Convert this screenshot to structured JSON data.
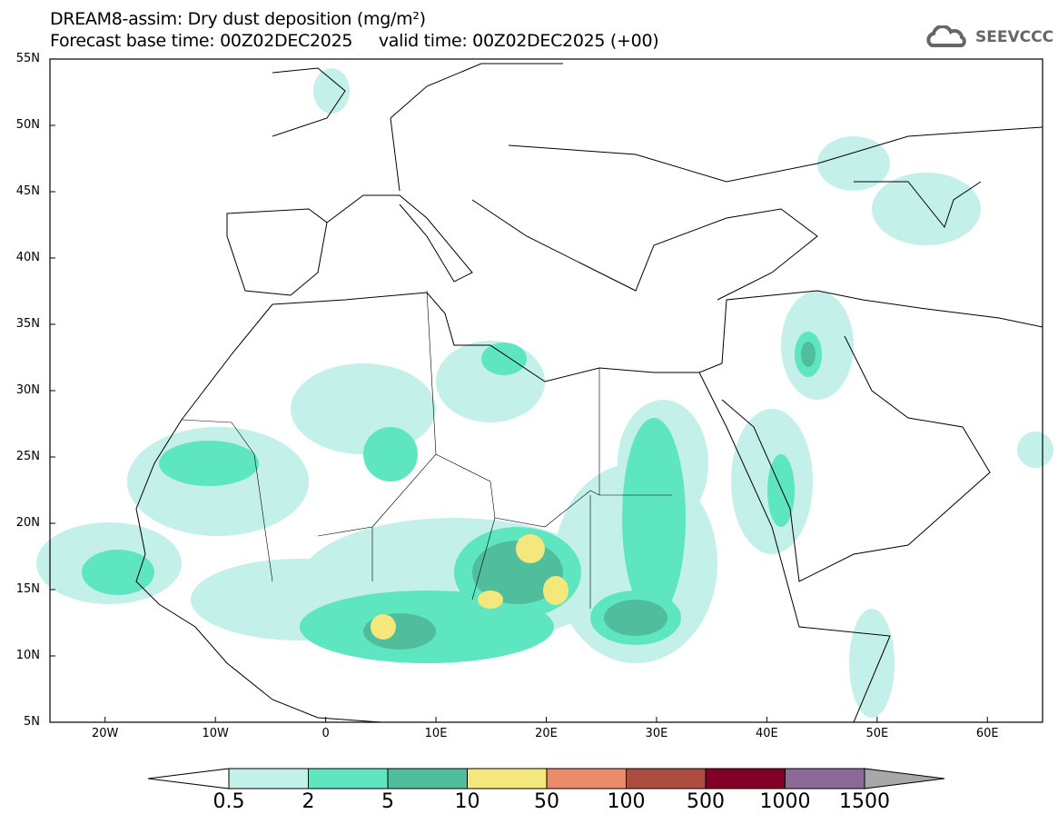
{
  "header": {
    "title": "DREAM8-assim: Dry dust deposition (mg/m²)",
    "subtitle": "Forecast base time: 00Z02DEC2025     valid time: 00Z02DEC2025 (+00)",
    "logo": "SEEVCCC"
  },
  "map": {
    "lon_range": [
      -25,
      65
    ],
    "lat_range": [
      5,
      55
    ],
    "lat_labels": [
      "55N",
      "50N",
      "45N",
      "40N",
      "35N",
      "30N",
      "25N",
      "20N",
      "15N",
      "10N",
      "5N"
    ],
    "lat_values": [
      55,
      50,
      45,
      40,
      35,
      30,
      25,
      20,
      15,
      10,
      5
    ],
    "lon_labels": [
      "20W",
      "10W",
      "0",
      "10E",
      "20E",
      "30E",
      "40E",
      "50E",
      "60E"
    ],
    "lon_values": [
      -20,
      -10,
      0,
      10,
      20,
      30,
      40,
      50,
      60
    ]
  },
  "colorbar": {
    "labels": [
      "0.5",
      "2",
      "5",
      "10",
      "50",
      "100",
      "500",
      "1000",
      "1500"
    ],
    "colors": [
      "#c4f0ea",
      "#5ee6c0",
      "#50be9c",
      "#f4e77c",
      "#ea8c6a",
      "#ad4c40",
      "#820028",
      "#8c6a98"
    ],
    "under_color": "#ffffff",
    "over_color": "#a8a8a8"
  }
}
